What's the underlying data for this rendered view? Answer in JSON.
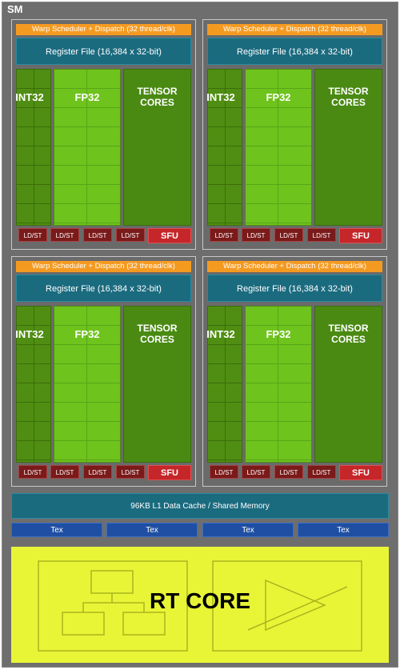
{
  "sm_label": "SM",
  "warp": "Warp Scheduler + Dispatch (32 thread/clk)",
  "register_file": "Register File (16,384 x 32-bit)",
  "int32": "INT32",
  "fp32": "FP32",
  "tensor_line1": "TENSOR",
  "tensor_line2": "CORES",
  "ldst": "LD/ST",
  "sfu": "SFU",
  "l1_cache": "96KB L1 Data Cache / Shared Memory",
  "tex": "Tex",
  "rt_core": "RT CORE",
  "colors": {
    "warp": "#f59a21",
    "register_file": "#1b6b7f",
    "int32": "#4f8e12",
    "fp32": "#6ec31d",
    "tensor": "#4a8a13",
    "ldst": "#7a1a1a",
    "sfu": "#c4262a",
    "tex": "#1f4fa3",
    "rt_core": "#e8f536"
  }
}
